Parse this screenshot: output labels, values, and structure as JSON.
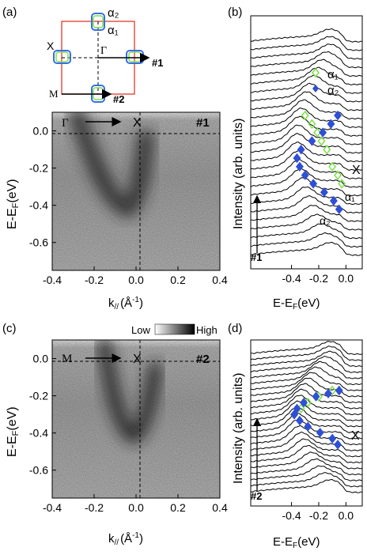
{
  "figure": {
    "panels": {
      "a": {
        "label": "(a)",
        "bz_labels": {
          "gamma": "Γ",
          "x": "X",
          "m": "M",
          "alpha2": "α₂",
          "alpha1": "α₁",
          "cut1": "#1",
          "cut2": "#2"
        },
        "map_gamma": "Γ",
        "map_x": "X",
        "map_cut": "#1",
        "ylabel": "E-E",
        "ylabel_sub": "F",
        "ylabel_unit": "(eV)",
        "xlabel": "k",
        "xlabel_sub": "//",
        "xlabel_unit": "(Å",
        "xlabel_exp": "-1",
        "xlabel_close": ")",
        "xticks": [
          "-0.4",
          "-0.2",
          "0.0",
          "0.2",
          "0.4"
        ],
        "yticks": [
          "0.0",
          "-0.2",
          "-0.4",
          "-0.6"
        ]
      },
      "b": {
        "label": "(b)",
        "ylabel": "Intensity (arb. units)",
        "xlabel": "E-E",
        "xlabel_sub": "F",
        "xlabel_unit": "(eV)",
        "xticks": [
          "-0.4",
          "-0.2",
          "0.0"
        ],
        "legend": [
          "α₁",
          "α₂"
        ],
        "side_label": "X",
        "arrow_label": "#1",
        "annot_alpha1": "α₁",
        "annot_alpha2": "α₂"
      },
      "c": {
        "label": "(c)",
        "colorbar_low": "Low",
        "colorbar_high": "High",
        "map_m": "M",
        "map_x": "X",
        "map_cut": "#2",
        "ylabel": "E-E",
        "ylabel_sub": "F",
        "ylabel_unit": "(eV)",
        "xlabel": "k",
        "xlabel_sub": "//",
        "xlabel_unit": "(Å",
        "xlabel_exp": "-1",
        "xlabel_close": ")",
        "xticks": [
          "-0.4",
          "-0.2",
          "0.0",
          "0.2",
          "0.4"
        ],
        "yticks": [
          "0.0",
          "-0.2",
          "-0.4",
          "-0.6"
        ]
      },
      "d": {
        "label": "(d)",
        "ylabel": "Intensity (arb. units)",
        "xlabel": "E-E",
        "xlabel_sub": "F",
        "xlabel_unit": "(eV)",
        "xticks": [
          "-0.4",
          "-0.2",
          "0.0"
        ],
        "side_label": "X",
        "arrow_label": "#2"
      }
    },
    "colors": {
      "alpha1": "#7ee04a",
      "alpha2": "#2f4fd6",
      "bz_border": "#e03a2a",
      "box": "#3a6ee8"
    }
  },
  "chart_data": [
    {
      "type": "heatmap",
      "panel": "a",
      "xlabel": "k// (Å-1)",
      "ylabel": "E-EF(eV)",
      "xlim": [
        -0.4,
        0.4
      ],
      "ylim": [
        -0.75,
        0.1
      ],
      "band_minimum": {
        "k": -0.05,
        "energy": -0.33
      }
    },
    {
      "type": "line",
      "panel": "b",
      "xlabel": "E-EF(eV)",
      "ylabel": "Intensity (arb. units)",
      "xlim": [
        -0.7,
        0.12
      ],
      "curve_count": 26,
      "series": [
        {
          "name": "α₁",
          "marker": "open-diamond",
          "points": [
            [
              -0.3,
              15
            ],
            [
              -0.25,
              14
            ],
            [
              -0.21,
              13
            ],
            [
              -0.18,
              12
            ],
            [
              -0.14,
              11
            ],
            [
              -0.1,
              9
            ],
            [
              -0.06,
              8
            ],
            [
              -0.03,
              7
            ]
          ]
        },
        {
          "name": "α₂",
          "marker": "filled-diamond",
          "points": [
            [
              -0.06,
              15
            ],
            [
              -0.11,
              14
            ],
            [
              -0.17,
              13
            ],
            [
              -0.25,
              12
            ],
            [
              -0.33,
              11
            ],
            [
              -0.36,
              10
            ],
            [
              -0.34,
              9
            ],
            [
              -0.3,
              8
            ],
            [
              -0.24,
              7
            ],
            [
              -0.16,
              6
            ],
            [
              -0.09,
              5
            ],
            [
              -0.05,
              4
            ]
          ]
        }
      ]
    },
    {
      "type": "heatmap",
      "panel": "c",
      "xlabel": "k// (Å-1)",
      "ylabel": "E-EF(eV)",
      "xlim": [
        -0.4,
        0.4
      ],
      "ylim": [
        -0.75,
        0.1
      ],
      "band_minimum": {
        "k": -0.02,
        "energy": -0.37
      }
    },
    {
      "type": "line",
      "panel": "d",
      "xlabel": "E-EF(eV)",
      "ylabel": "Intensity (arb. units)",
      "xlim": [
        -0.7,
        0.12
      ],
      "curve_count": 24,
      "series": [
        {
          "name": "α₁",
          "marker": "open-diamond",
          "points": [
            [
              -0.38,
              11
            ],
            [
              -0.33,
              12
            ],
            [
              -0.28,
              13
            ],
            [
              -0.2,
              14
            ],
            [
              -0.1,
              15
            ],
            [
              -0.05,
              15
            ]
          ]
        },
        {
          "name": "α₂",
          "marker": "filled-diamond",
          "points": [
            [
              -0.05,
              15
            ],
            [
              -0.13,
              14.5
            ],
            [
              -0.22,
              14
            ],
            [
              -0.31,
              13
            ],
            [
              -0.36,
              12
            ],
            [
              -0.38,
              11
            ],
            [
              -0.34,
              10
            ],
            [
              -0.28,
              9
            ],
            [
              -0.19,
              8
            ],
            [
              -0.1,
              7
            ],
            [
              -0.06,
              6
            ]
          ]
        }
      ]
    }
  ]
}
